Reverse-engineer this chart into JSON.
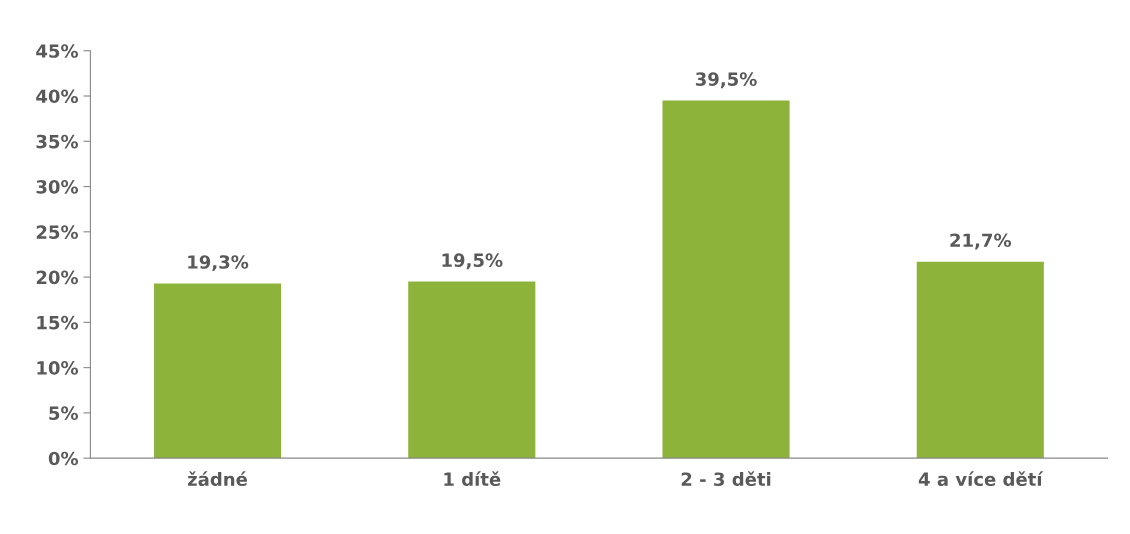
{
  "chart_data": {
    "type": "bar",
    "categories": [
      "žádné",
      "1 dítě",
      "2 - 3 děti",
      "4 a více dětí"
    ],
    "values": [
      19.3,
      19.5,
      39.5,
      21.7
    ],
    "value_labels": [
      "19,3%",
      "19,5%",
      "39,5%",
      "21,7%"
    ],
    "color": "#8db33a",
    "ylim": [
      0,
      45
    ],
    "yticks": [
      {
        "value": 0,
        "label": "0%"
      },
      {
        "value": 5,
        "label": "5%"
      },
      {
        "value": 10,
        "label": "10%"
      },
      {
        "value": 15,
        "label": "15%"
      },
      {
        "value": 20,
        "label": "20%"
      },
      {
        "value": 25,
        "label": "25%"
      },
      {
        "value": 30,
        "label": "30%"
      },
      {
        "value": 35,
        "label": "35%"
      },
      {
        "value": 40,
        "label": "40%"
      },
      {
        "value": 45,
        "label": "45%"
      }
    ],
    "grid": false,
    "legend": false
  }
}
